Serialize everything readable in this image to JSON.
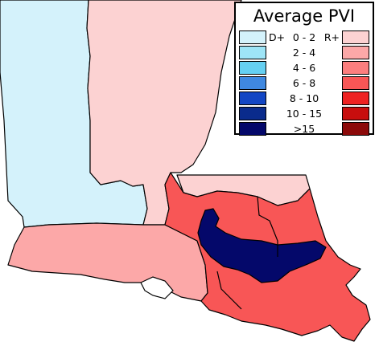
{
  "legend": {
    "title": "Average PVI",
    "d_label": "D+",
    "r_label": "R+",
    "rows": [
      {
        "range": "0 - 2",
        "dem_color": "#d4f2fb",
        "rep_color": "#fcd2d2"
      },
      {
        "range": "2 - 4",
        "dem_color": "#9ee5f7",
        "rep_color": "#fca8a8"
      },
      {
        "range": "4 - 6",
        "dem_color": "#65d0f2",
        "rep_color": "#fc7e7e"
      },
      {
        "range": "6 - 8",
        "dem_color": "#3f88e0",
        "rep_color": "#f85656"
      },
      {
        "range": "8 - 10",
        "dem_color": "#1246c4",
        "rep_color": "#ee2222"
      },
      {
        "range": "10 - 15",
        "dem_color": "#0a2b8c",
        "rep_color": "#c80e0e"
      },
      {
        "range": ">15",
        "dem_color": "#04086a",
        "rep_color": "#8c0a0a"
      }
    ]
  },
  "map": {
    "districts": [
      {
        "id": "northwest",
        "fill": "#d4f2fb",
        "band": "D+0 - 2"
      },
      {
        "id": "northeast",
        "fill": "#fcd2d2",
        "band": "R+0 - 2"
      },
      {
        "id": "southwest",
        "fill": "#fca8a8",
        "band": "R+2 - 4"
      },
      {
        "id": "southeast",
        "fill": "#f85656",
        "band": "R+6 - 8"
      },
      {
        "id": "east-upper",
        "fill": "#fcd2d2",
        "band": "R+0 - 2"
      },
      {
        "id": "central-corridor",
        "fill": "#04086a",
        "band": "D+>15"
      }
    ]
  }
}
